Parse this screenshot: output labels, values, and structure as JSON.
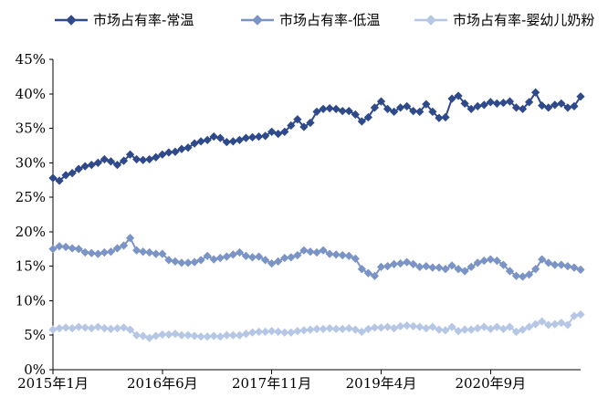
{
  "chart_data": {
    "type": "line",
    "title": "",
    "xlabel": "",
    "ylabel": "",
    "ylim": [
      0,
      45
    ],
    "y_ticks": [
      "0%",
      "5%",
      "10%",
      "15%",
      "20%",
      "25%",
      "30%",
      "35%",
      "40%",
      "45%"
    ],
    "y_tick_values": [
      0,
      5,
      10,
      15,
      20,
      25,
      30,
      35,
      40,
      45
    ],
    "x_ticks": [
      "2015年1月",
      "2016年6月",
      "2017年11月",
      "2019年4月",
      "2020年9月"
    ],
    "x_tick_months": [
      "2015-01",
      "2016-06",
      "2017-11",
      "2019-04",
      "2020-09"
    ],
    "x_start": "2015-01",
    "x_end": "2021-12",
    "legend_position": "top",
    "grid": false,
    "series": [
      {
        "name": "市场占有率-常温",
        "color": "#2F4A8A",
        "marker": "diamond",
        "values": [
          27.8,
          27.4,
          28.2,
          28.5,
          29.1,
          29.5,
          29.7,
          30.0,
          30.5,
          30.2,
          29.7,
          30.3,
          31.2,
          30.5,
          30.4,
          30.5,
          30.8,
          31.2,
          31.5,
          31.6,
          32.0,
          32.2,
          32.8,
          33.1,
          33.3,
          33.8,
          33.6,
          33.0,
          33.1,
          33.3,
          33.6,
          33.7,
          33.8,
          33.9,
          34.5,
          34.2,
          34.5,
          35.4,
          36.3,
          35.2,
          35.8,
          37.4,
          37.8,
          37.9,
          37.8,
          37.5,
          37.5,
          37.0,
          36.0,
          36.6,
          38.0,
          38.9,
          37.8,
          37.4,
          38.0,
          38.2,
          37.5,
          37.4,
          38.5,
          37.4,
          36.5,
          36.6,
          39.3,
          39.7,
          38.6,
          37.8,
          38.2,
          38.4,
          38.8,
          38.6,
          38.7,
          38.9,
          38.0,
          37.8,
          38.8,
          40.2,
          38.3,
          38.0,
          38.4,
          38.6,
          38.0,
          38.2,
          39.6
        ]
      },
      {
        "name": "市场占有率-低温",
        "color": "#7B94C6",
        "marker": "diamond",
        "values": [
          17.5,
          17.9,
          17.8,
          17.6,
          17.5,
          17.0,
          16.9,
          16.8,
          17.0,
          17.1,
          17.6,
          18.0,
          19.1,
          17.3,
          17.1,
          17.0,
          16.8,
          16.8,
          15.9,
          15.7,
          15.5,
          15.5,
          15.6,
          15.9,
          16.5,
          16.0,
          16.2,
          16.4,
          16.7,
          17.0,
          16.5,
          16.3,
          16.4,
          15.9,
          15.4,
          15.7,
          16.2,
          16.3,
          16.6,
          17.3,
          17.1,
          17.0,
          17.3,
          16.8,
          16.7,
          16.6,
          16.5,
          16.1,
          14.6,
          14.0,
          13.6,
          14.9,
          15.0,
          15.3,
          15.4,
          15.6,
          15.3,
          14.9,
          15.0,
          14.8,
          14.8,
          14.6,
          15.1,
          14.6,
          14.3,
          14.9,
          15.5,
          15.8,
          16.0,
          15.8,
          15.2,
          14.3,
          13.6,
          13.5,
          13.8,
          14.6,
          16.0,
          15.5,
          15.2,
          15.2,
          15.0,
          14.8,
          14.5
        ]
      },
      {
        "name": "市场占有率-婴幼儿奶粉",
        "color": "#B6C7E6",
        "marker": "diamond",
        "values": [
          5.8,
          6.0,
          6.1,
          6.0,
          6.2,
          6.1,
          6.0,
          6.2,
          6.0,
          5.9,
          6.0,
          6.1,
          5.8,
          5.0,
          4.9,
          4.6,
          4.9,
          5.1,
          5.1,
          5.2,
          5.0,
          5.0,
          4.9,
          4.8,
          4.8,
          4.9,
          4.8,
          5.0,
          5.0,
          5.0,
          5.2,
          5.4,
          5.5,
          5.5,
          5.6,
          5.5,
          5.4,
          5.4,
          5.6,
          5.7,
          5.8,
          5.9,
          5.9,
          6.0,
          5.9,
          5.9,
          6.0,
          5.8,
          5.5,
          5.9,
          6.1,
          6.1,
          6.2,
          6.0,
          6.3,
          6.4,
          6.3,
          6.2,
          6.0,
          6.2,
          5.8,
          5.7,
          6.2,
          5.6,
          5.8,
          5.8,
          6.0,
          6.2,
          5.9,
          6.2,
          5.9,
          6.2,
          5.5,
          5.8,
          6.2,
          6.6,
          7.0,
          6.5,
          6.6,
          6.8,
          6.5,
          7.8,
          8.0
        ]
      }
    ]
  }
}
